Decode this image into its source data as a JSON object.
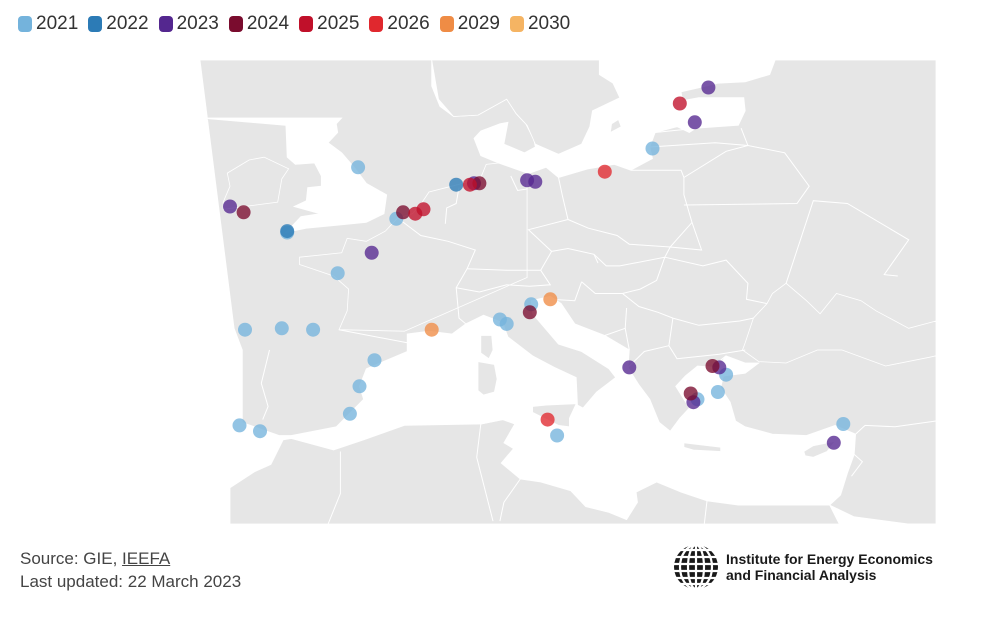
{
  "legend": [
    {
      "label": "2021",
      "color": "#74b3dc"
    },
    {
      "label": "2022",
      "color": "#2c7bb6"
    },
    {
      "label": "2023",
      "color": "#54278f"
    },
    {
      "label": "2024",
      "color": "#7a0c2e"
    },
    {
      "label": "2025",
      "color": "#c0102a"
    },
    {
      "label": "2026",
      "color": "#e0282e"
    },
    {
      "label": "2029",
      "color": "#ef8c45"
    },
    {
      "label": "2030",
      "color": "#f5b463"
    }
  ],
  "map": {
    "land_color": "#e6e6e6",
    "sea_color": "#ffffff",
    "border_color": "#ffffff",
    "terminals": [
      {
        "lon": -5.6,
        "lat": 50.1,
        "year": "2021"
      },
      {
        "lon": -0.4,
        "lat": 54.6,
        "year": "2021"
      },
      {
        "lon": 2.4,
        "lat": 51.05,
        "year": "2021"
      },
      {
        "lon": -1.9,
        "lat": 47.3,
        "year": "2021"
      },
      {
        "lon": -8.7,
        "lat": 43.4,
        "year": "2021"
      },
      {
        "lon": -6.0,
        "lat": 43.5,
        "year": "2021"
      },
      {
        "lon": -3.7,
        "lat": 43.4,
        "year": "2021"
      },
      {
        "lon": 0.8,
        "lat": 41.3,
        "year": "2021"
      },
      {
        "lon": -0.3,
        "lat": 39.5,
        "year": "2021"
      },
      {
        "lon": -1.0,
        "lat": 37.6,
        "year": "2021"
      },
      {
        "lon": -9.1,
        "lat": 36.8,
        "year": "2021"
      },
      {
        "lon": -7.6,
        "lat": 36.4,
        "year": "2021"
      },
      {
        "lon": 10.0,
        "lat": 44.1,
        "year": "2021"
      },
      {
        "lon": 10.5,
        "lat": 43.8,
        "year": "2021"
      },
      {
        "lon": 12.3,
        "lat": 45.15,
        "year": "2021"
      },
      {
        "lon": 14.2,
        "lat": 36.1,
        "year": "2021"
      },
      {
        "lon": 24.5,
        "lat": 38.6,
        "year": "2021"
      },
      {
        "lon": 26.6,
        "lat": 40.3,
        "year": "2021"
      },
      {
        "lon": 26.0,
        "lat": 39.1,
        "year": "2021"
      },
      {
        "lon": 21.2,
        "lat": 55.9,
        "year": "2021"
      },
      {
        "lon": 35.2,
        "lat": 36.9,
        "year": "2021"
      },
      {
        "lon": -5.6,
        "lat": 50.2,
        "year": "2022"
      },
      {
        "lon": 6.8,
        "lat": 53.4,
        "year": "2022"
      },
      {
        "lon": -9.8,
        "lat": 51.9,
        "year": "2023"
      },
      {
        "lon": 0.6,
        "lat": 48.7,
        "year": "2023"
      },
      {
        "lon": 8.1,
        "lat": 53.5,
        "year": "2023"
      },
      {
        "lon": 12.0,
        "lat": 53.7,
        "year": "2023"
      },
      {
        "lon": 12.6,
        "lat": 53.6,
        "year": "2023"
      },
      {
        "lon": 24.3,
        "lat": 57.7,
        "year": "2023"
      },
      {
        "lon": 25.3,
        "lat": 60.1,
        "year": "2023"
      },
      {
        "lon": 26.1,
        "lat": 40.8,
        "year": "2023"
      },
      {
        "lon": 19.5,
        "lat": 40.8,
        "year": "2023"
      },
      {
        "lon": 24.2,
        "lat": 38.4,
        "year": "2023"
      },
      {
        "lon": 34.5,
        "lat": 35.6,
        "year": "2023"
      },
      {
        "lon": 12.2,
        "lat": 44.6,
        "year": "2024"
      },
      {
        "lon": 25.6,
        "lat": 40.9,
        "year": "2024"
      },
      {
        "lon": 8.5,
        "lat": 53.5,
        "year": "2024"
      },
      {
        "lon": -8.8,
        "lat": 51.5,
        "year": "2024"
      },
      {
        "lon": 2.9,
        "lat": 51.5,
        "year": "2024"
      },
      {
        "lon": 24.0,
        "lat": 39.0,
        "year": "2024"
      },
      {
        "lon": 3.8,
        "lat": 51.4,
        "year": "2025"
      },
      {
        "lon": 4.4,
        "lat": 51.7,
        "year": "2025"
      },
      {
        "lon": 7.8,
        "lat": 53.4,
        "year": "2025"
      },
      {
        "lon": 23.2,
        "lat": 59.0,
        "year": "2025"
      },
      {
        "lon": 17.7,
        "lat": 54.3,
        "year": "2026"
      },
      {
        "lon": 13.5,
        "lat": 37.2,
        "year": "2026"
      },
      {
        "lon": 5.0,
        "lat": 43.4,
        "year": "2029"
      },
      {
        "lon": 13.7,
        "lat": 45.5,
        "year": "2029"
      }
    ]
  },
  "footer": {
    "source_prefix": "Source: GIE, ",
    "source_link": "IEEFA",
    "updated": "Last updated: 22 March 2023"
  },
  "logo": {
    "line1": "Institute for Energy Economics",
    "line2": "and Financial Analysis",
    "icon": "globe-icon"
  }
}
